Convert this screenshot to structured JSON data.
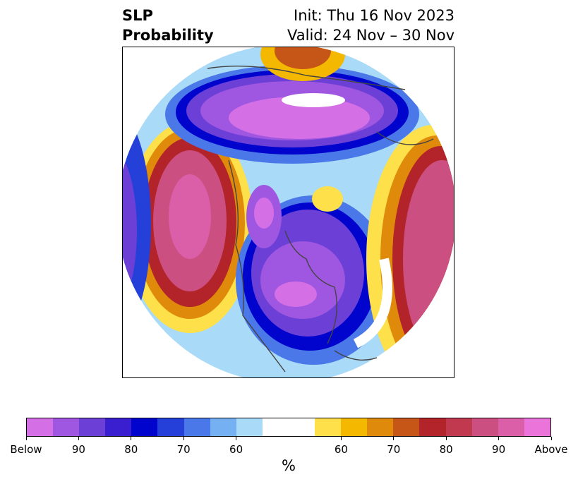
{
  "title": {
    "left_line1": "SLP",
    "left_line2": "Probability",
    "right_line1": "Init: Thu 16 Nov 2023",
    "right_line2": "Valid: 24 Nov – 30 Nov"
  },
  "colorbar": {
    "colors": [
      "#d46fe6",
      "#9f56e0",
      "#6c3fd6",
      "#3a1fd0",
      "#0004cc",
      "#2440d8",
      "#4a78e8",
      "#74b0f2",
      "#a9daf7",
      "#ffffff",
      "#ffffff",
      "#fde04a",
      "#f5b800",
      "#e08a0c",
      "#c65617",
      "#b2232a",
      "#c0394f",
      "#cc4f82",
      "#db5ea8",
      "#ea74d9"
    ],
    "tick_labels": [
      "Below",
      "90",
      "80",
      "70",
      "60",
      "60",
      "70",
      "80",
      "90",
      "Above"
    ],
    "unit_label": "%"
  }
}
